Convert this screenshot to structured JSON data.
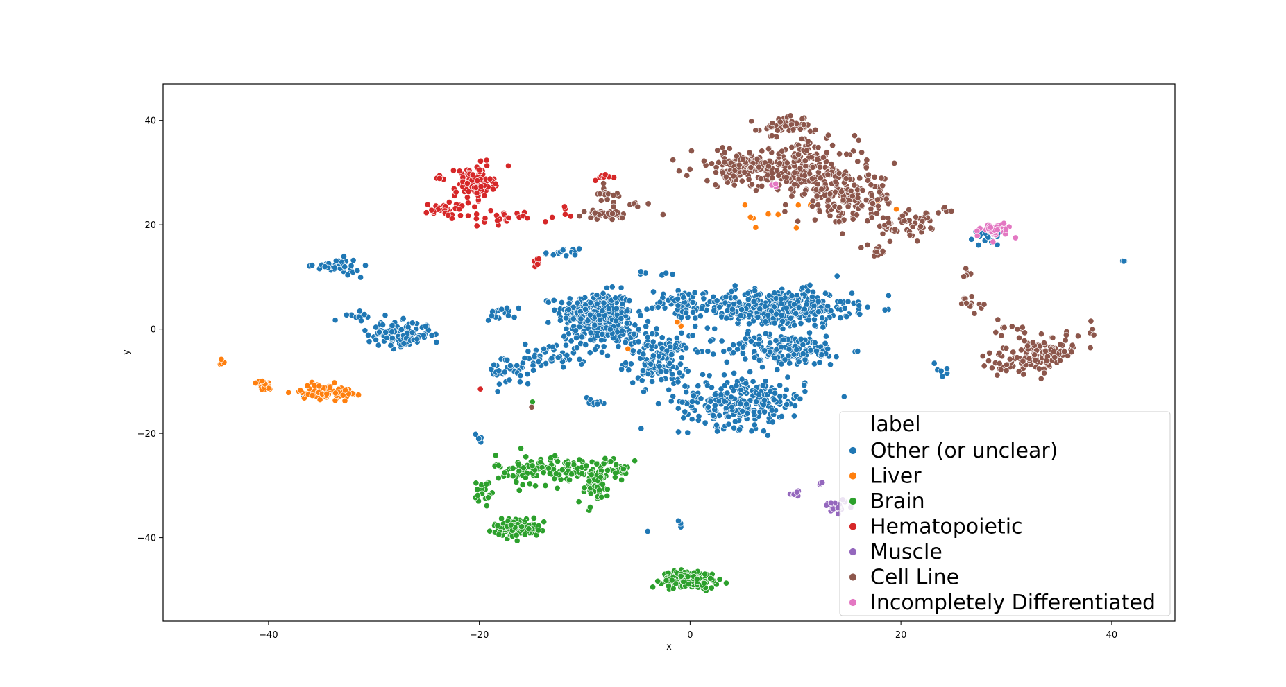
{
  "chart_data": {
    "type": "scatter",
    "title": "",
    "xlabel": "x",
    "ylabel": "y",
    "xlim": [
      -50,
      46
    ],
    "ylim": [
      -56,
      47
    ],
    "xticks": [
      -40,
      -20,
      0,
      20,
      40
    ],
    "yticks": [
      40,
      20,
      0,
      -20,
      -40
    ],
    "xtick_labels": [
      "−40",
      "−20",
      "0",
      "20",
      "40"
    ],
    "ytick_labels": [
      "40",
      "20",
      "0",
      "−20",
      "−40"
    ],
    "grid": false,
    "legend": {
      "title": "label",
      "placement": "bottom-right",
      "entries": [
        "Other (or unclear)",
        "Liver",
        "Brain",
        "Hematopoietic",
        "Muscle",
        "Cell Line",
        "Incompletely Differentiated"
      ]
    },
    "series": [
      {
        "name": "Other (or unclear)",
        "color": "#1f77b4",
        "clusters": [
          {
            "center": [
              -9,
              3
            ],
            "spread": [
              3,
              3.5
            ],
            "count": 260
          },
          {
            "center": [
              -7,
              -1
            ],
            "spread": [
              3,
              2.5
            ],
            "count": 80
          },
          {
            "center": [
              -3,
              -6
            ],
            "spread": [
              2.5,
              4
            ],
            "count": 140
          },
          {
            "center": [
              -1,
              5
            ],
            "spread": [
              2.5,
              2
            ],
            "count": 50
          },
          {
            "center": [
              8,
              4
            ],
            "spread": [
              6,
              3
            ],
            "count": 380
          },
          {
            "center": [
              9,
              -4
            ],
            "spread": [
              5,
              2.5
            ],
            "count": 170
          },
          {
            "center": [
              5,
              -14
            ],
            "spread": [
              5,
              4
            ],
            "count": 260
          },
          {
            "center": [
              -27.5,
              -1
            ],
            "spread": [
              2.5,
              2
            ],
            "count": 120
          },
          {
            "center": [
              -33.5,
              12
            ],
            "spread": [
              1.8,
              1.2
            ],
            "count": 40
          },
          {
            "center": [
              -31,
              2.5
            ],
            "spread": [
              1.5,
              0.7
            ],
            "count": 12
          },
          {
            "center": [
              -13,
              -5
            ],
            "spread": [
              3,
              2.5
            ],
            "count": 50
          },
          {
            "center": [
              -17,
              -8
            ],
            "spread": [
              1.8,
              2.5
            ],
            "count": 40
          },
          {
            "center": [
              -18,
              3
            ],
            "spread": [
              1.2,
              1
            ],
            "count": 14
          },
          {
            "center": [
              -12,
              14.5
            ],
            "spread": [
              1.5,
              0.8
            ],
            "count": 14
          },
          {
            "center": [
              -9,
              -14
            ],
            "spread": [
              1,
              1
            ],
            "count": 10
          },
          {
            "center": [
              -20,
              -20.5
            ],
            "spread": [
              0.4,
              0.8
            ],
            "count": 5
          },
          {
            "center": [
              -3.5,
              10.5
            ],
            "spread": [
              1.2,
              0.6
            ],
            "count": 6
          },
          {
            "center": [
              24,
              -8
            ],
            "spread": [
              1.5,
              1
            ],
            "count": 6
          },
          {
            "center": [
              28,
              17.5
            ],
            "spread": [
              1.5,
              1.2
            ],
            "count": 14
          },
          {
            "center": [
              41,
              13
            ],
            "spread": [
              0.3,
              0.1
            ],
            "count": 3
          },
          {
            "center": [
              -36,
              -12
            ],
            "spread": [
              1,
              1
            ],
            "count": 5
          },
          {
            "center": [
              -1,
              -37
            ],
            "spread": [
              0.3,
              0.8
            ],
            "count": 3
          },
          {
            "center": [
              -4,
              -39
            ],
            "spread": [
              0.2,
              0.2
            ],
            "count": 1
          }
        ]
      },
      {
        "name": "Liver",
        "color": "#ff7f0e",
        "clusters": [
          {
            "center": [
              -34.5,
              -12
            ],
            "spread": [
              2,
              1.2
            ],
            "count": 80
          },
          {
            "center": [
              -40.5,
              -10.8
            ],
            "spread": [
              0.6,
              0.8
            ],
            "count": 22
          },
          {
            "center": [
              -44.5,
              -6.5
            ],
            "spread": [
              0.3,
              0.4
            ],
            "count": 4
          },
          {
            "center": [
              9,
              22
            ],
            "spread": [
              3.5,
              2.5
            ],
            "count": 10
          },
          {
            "center": [
              -1,
              1
            ],
            "spread": [
              0.6,
              1.5
            ],
            "count": 3
          },
          {
            "center": [
              -6,
              -4
            ],
            "spread": [
              0.2,
              0.2
            ],
            "count": 1
          },
          {
            "center": [
              17,
              24
            ],
            "spread": [
              3,
              1
            ],
            "count": 3
          }
        ]
      },
      {
        "name": "Brain",
        "color": "#2ca02c",
        "clusters": [
          {
            "center": [
              -13,
              -27
            ],
            "spread": [
              4.5,
              2.5
            ],
            "count": 140
          },
          {
            "center": [
              -16.5,
              -38
            ],
            "spread": [
              1.8,
              1.5
            ],
            "count": 120
          },
          {
            "center": [
              -9,
              -30
            ],
            "spread": [
              1.5,
              3
            ],
            "count": 45
          },
          {
            "center": [
              -7,
              -27
            ],
            "spread": [
              1,
              1.5
            ],
            "count": 22
          },
          {
            "center": [
              0,
              -48
            ],
            "spread": [
              2.2,
              1.4
            ],
            "count": 140
          },
          {
            "center": [
              -19.5,
              -31
            ],
            "spread": [
              0.8,
              3
            ],
            "count": 18
          },
          {
            "center": [
              -15,
              -14
            ],
            "spread": [
              0.1,
              0.1
            ],
            "count": 1
          }
        ]
      },
      {
        "name": "Hematopoietic",
        "color": "#d62728",
        "clusters": [
          {
            "center": [
              -20.5,
              28
            ],
            "spread": [
              1.5,
              2.5
            ],
            "count": 120
          },
          {
            "center": [
              -23,
              23
            ],
            "spread": [
              1.8,
              1.2
            ],
            "count": 40
          },
          {
            "center": [
              -17.5,
              21
            ],
            "spread": [
              1.5,
              1.2
            ],
            "count": 22
          },
          {
            "center": [
              -14.5,
              13.5
            ],
            "spread": [
              0.4,
              1.2
            ],
            "count": 6
          },
          {
            "center": [
              -8.5,
              29
            ],
            "spread": [
              0.7,
              0.6
            ],
            "count": 7
          },
          {
            "center": [
              -12.5,
              22
            ],
            "spread": [
              1.5,
              1.5
            ],
            "count": 6
          },
          {
            "center": [
              -24,
              29
            ],
            "spread": [
              0.6,
              0.5
            ],
            "count": 4
          },
          {
            "center": [
              -20,
              -11.5
            ],
            "spread": [
              0.1,
              0.1
            ],
            "count": 1
          }
        ]
      },
      {
        "name": "Muscle",
        "color": "#9467bd",
        "clusters": [
          {
            "center": [
              14,
              -34
            ],
            "spread": [
              1.3,
              1
            ],
            "count": 28
          },
          {
            "center": [
              10,
              -31.5
            ],
            "spread": [
              0.6,
              0.5
            ],
            "count": 8
          },
          {
            "center": [
              12.5,
              -29.5
            ],
            "spread": [
              0.3,
              0.3
            ],
            "count": 3
          }
        ]
      },
      {
        "name": "Cell Line",
        "color": "#8c564b",
        "clusters": [
          {
            "center": [
              5,
              31
            ],
            "spread": [
              4,
              3
            ],
            "count": 130
          },
          {
            "center": [
              11,
              31
            ],
            "spread": [
              4,
              4.5
            ],
            "count": 170
          },
          {
            "center": [
              15,
              25
            ],
            "spread": [
              4,
              4
            ],
            "count": 160
          },
          {
            "center": [
              9,
              39
            ],
            "spread": [
              2,
              1.5
            ],
            "count": 45
          },
          {
            "center": [
              21,
              20
            ],
            "spread": [
              2.5,
              2
            ],
            "count": 50
          },
          {
            "center": [
              18,
              15
            ],
            "spread": [
              1,
              0.8
            ],
            "count": 12
          },
          {
            "center": [
              33,
              -5
            ],
            "spread": [
              2.5,
              2.2
            ],
            "count": 80
          },
          {
            "center": [
              30,
              -7
            ],
            "spread": [
              2,
              2
            ],
            "count": 30
          },
          {
            "center": [
              36,
              -2
            ],
            "spread": [
              3,
              3
            ],
            "count": 25
          },
          {
            "center": [
              30,
              0
            ],
            "spread": [
              1.5,
              1
            ],
            "count": 10
          },
          {
            "center": [
              26.5,
              5
            ],
            "spread": [
              1,
              1.2
            ],
            "count": 14
          },
          {
            "center": [
              26.5,
              10
            ],
            "spread": [
              0.5,
              1.5
            ],
            "count": 5
          },
          {
            "center": [
              -8,
              22
            ],
            "spread": [
              1.5,
              0.7
            ],
            "count": 35
          },
          {
            "center": [
              -8,
              26
            ],
            "spread": [
              1.2,
              1.2
            ],
            "count": 15
          },
          {
            "center": [
              -5,
              24
            ],
            "spread": [
              1,
              0.4
            ],
            "count": 6
          },
          {
            "center": [
              24,
              23
            ],
            "spread": [
              0.8,
              0.8
            ],
            "count": 5
          },
          {
            "center": [
              -15,
              -15
            ],
            "spread": [
              0.1,
              0.1
            ],
            "count": 1
          },
          {
            "center": [
              -2.5,
              22
            ],
            "spread": [
              0.1,
              0.1
            ],
            "count": 1
          }
        ]
      },
      {
        "name": "Incompletely Differentiated",
        "color": "#e377c2",
        "clusters": [
          {
            "center": [
              29,
              19
            ],
            "spread": [
              1.2,
              1.2
            ],
            "count": 45
          },
          {
            "center": [
              8,
              27.5
            ],
            "spread": [
              0.3,
              0.5
            ],
            "count": 3
          }
        ]
      }
    ]
  }
}
